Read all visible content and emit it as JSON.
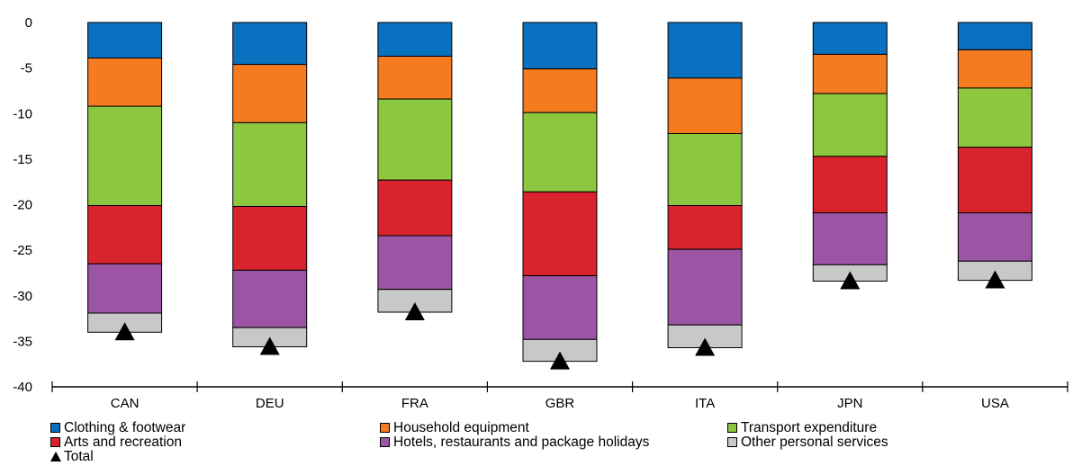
{
  "chart_data": {
    "type": "bar",
    "stacked": true,
    "categories": [
      "CAN",
      "DEU",
      "FRA",
      "GBR",
      "ITA",
      "JPN",
      "USA"
    ],
    "ylim": [
      -40,
      0
    ],
    "yticks": [
      0,
      -5,
      -10,
      -15,
      -20,
      -25,
      -30,
      -35,
      -40
    ],
    "grid": false,
    "legend_position": "bottom",
    "series": [
      {
        "name": "Clothing & footwear",
        "color": "#0a70c0",
        "values": [
          -3.9,
          -4.6,
          -3.7,
          -5.1,
          -6.1,
          -3.5,
          -3.0
        ]
      },
      {
        "name": "Household equipment",
        "color": "#f47b20",
        "values": [
          -5.3,
          -6.4,
          -4.7,
          -4.8,
          -6.1,
          -4.3,
          -4.2
        ]
      },
      {
        "name": "Transport expenditure",
        "color": "#8dc63f",
        "values": [
          -10.9,
          -9.2,
          -8.9,
          -8.7,
          -7.9,
          -6.9,
          -6.5
        ]
      },
      {
        "name": "Arts and recreation",
        "color": "#d9232d",
        "values": [
          -6.4,
          -7.0,
          -6.1,
          -9.2,
          -4.8,
          -6.2,
          -7.2
        ]
      },
      {
        "name": "Hotels, restaurants and package holidays",
        "color": "#9c54a5",
        "values": [
          -5.4,
          -6.3,
          -5.9,
          -7.0,
          -8.3,
          -5.7,
          -5.3
        ]
      },
      {
        "name": "Other personal services",
        "color": "#c8c8c8",
        "values": [
          -2.1,
          -2.1,
          -2.5,
          -2.4,
          -2.5,
          -1.8,
          -2.1
        ]
      }
    ],
    "total": {
      "name": "Total",
      "values": [
        -34.0,
        -35.6,
        -31.8,
        -37.2,
        -35.7,
        -28.4,
        -28.3
      ]
    }
  }
}
